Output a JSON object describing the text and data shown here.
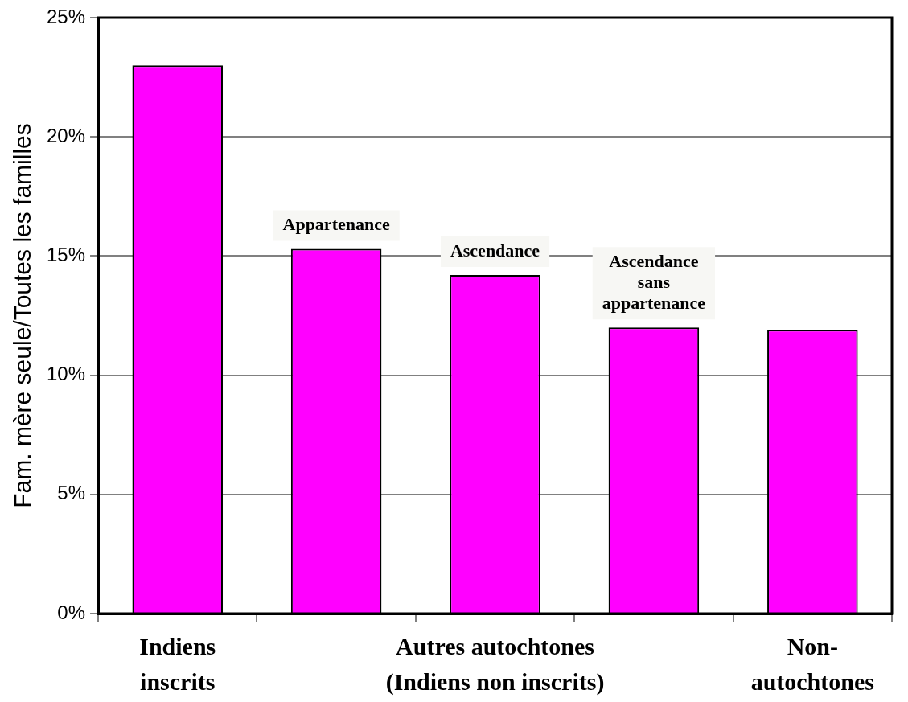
{
  "chart_data": {
    "type": "bar",
    "ylabel": "Fam. mère seule/Toutes les familles",
    "categories": [
      "Indiens inscrits",
      "Appartenance",
      "Ascendance",
      "Ascendance sans appartenance",
      "Non-autochtones"
    ],
    "values": [
      23.0,
      15.3,
      14.2,
      12.0,
      11.9
    ],
    "color": "#ff00ff",
    "ylim": [
      0,
      25
    ],
    "yticks": [
      {
        "value": 0,
        "label": "0%"
      },
      {
        "value": 5,
        "label": "5%"
      },
      {
        "value": 10,
        "label": "10%"
      },
      {
        "value": 15,
        "label": "15%"
      },
      {
        "value": 20,
        "label": "20%"
      },
      {
        "value": 25,
        "label": "25%"
      }
    ],
    "grid": "y",
    "legend": false,
    "annotations": [
      "Autres autochtones (Indiens non inscrits)"
    ]
  }
}
